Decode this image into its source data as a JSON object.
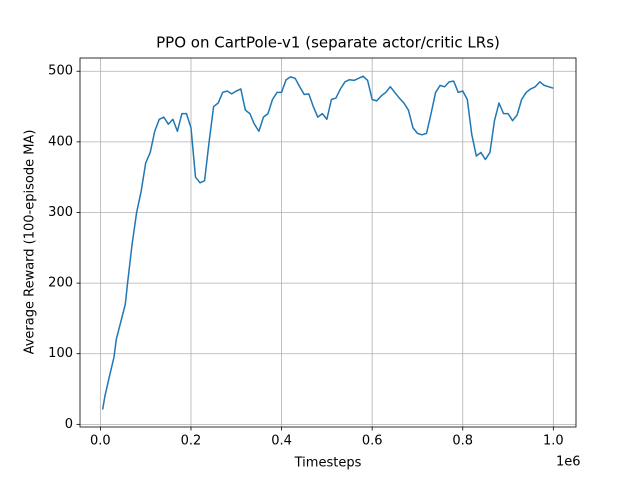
{
  "chart_data": {
    "type": "line",
    "title": "PPO on CartPole-v1 (separate actor/critic LRs)",
    "x_label": "Timesteps",
    "y_label": "Average Reward (100-episode MA)",
    "x_offset_label": "1e6",
    "color": "#1f77b4",
    "grid": true,
    "xlim": [
      -0.045,
      1.05
    ],
    "ylim": [
      -3.75,
      518.75
    ],
    "xticks": [
      {
        "value": 0,
        "label": "0.0"
      },
      0.2,
      0.4,
      0.6,
      0.8,
      {
        "value": 1,
        "label": "1.0"
      }
    ],
    "yticks": [
      0,
      100,
      200,
      300,
      400,
      500
    ],
    "x": [
      0.005,
      0.01,
      0.02,
      0.03,
      0.035,
      0.045,
      0.055,
      0.06,
      0.07,
      0.08,
      0.09,
      0.1,
      0.11,
      0.12,
      0.13,
      0.14,
      0.15,
      0.16,
      0.17,
      0.18,
      0.19,
      0.2,
      0.21,
      0.22,
      0.23,
      0.24,
      0.25,
      0.26,
      0.27,
      0.28,
      0.29,
      0.3,
      0.31,
      0.32,
      0.33,
      0.34,
      0.35,
      0.36,
      0.37,
      0.38,
      0.39,
      0.4,
      0.41,
      0.42,
      0.43,
      0.44,
      0.45,
      0.46,
      0.47,
      0.48,
      0.49,
      0.5,
      0.51,
      0.52,
      0.53,
      0.54,
      0.55,
      0.56,
      0.57,
      0.58,
      0.59,
      0.6,
      0.61,
      0.62,
      0.63,
      0.64,
      0.65,
      0.66,
      0.67,
      0.68,
      0.69,
      0.7,
      0.71,
      0.72,
      0.73,
      0.74,
      0.75,
      0.76,
      0.77,
      0.78,
      0.79,
      0.8,
      0.81,
      0.82,
      0.83,
      0.84,
      0.85,
      0.86,
      0.87,
      0.88,
      0.89,
      0.9,
      0.91,
      0.92,
      0.93,
      0.94,
      0.95,
      0.96,
      0.97,
      0.98,
      0.99,
      1.0
    ],
    "values": [
      21,
      40,
      68,
      95,
      120,
      145,
      170,
      200,
      255,
      300,
      330,
      370,
      385,
      415,
      432,
      435,
      425,
      432,
      415,
      440,
      440,
      420,
      350,
      342,
      345,
      400,
      450,
      455,
      470,
      472,
      468,
      472,
      475,
      445,
      440,
      425,
      415,
      435,
      440,
      460,
      470,
      470,
      488,
      492,
      490,
      478,
      467,
      468,
      450,
      435,
      440,
      432,
      460,
      462,
      475,
      485,
      488,
      487,
      490,
      493,
      487,
      460,
      458,
      465,
      470,
      478,
      470,
      462,
      455,
      445,
      420,
      412,
      410,
      412,
      440,
      470,
      480,
      478,
      485,
      486,
      470,
      472,
      460,
      410,
      380,
      385,
      375,
      385,
      430,
      455,
      440,
      440,
      430,
      438,
      460,
      470,
      475,
      478,
      485,
      480,
      478,
      476
    ]
  }
}
